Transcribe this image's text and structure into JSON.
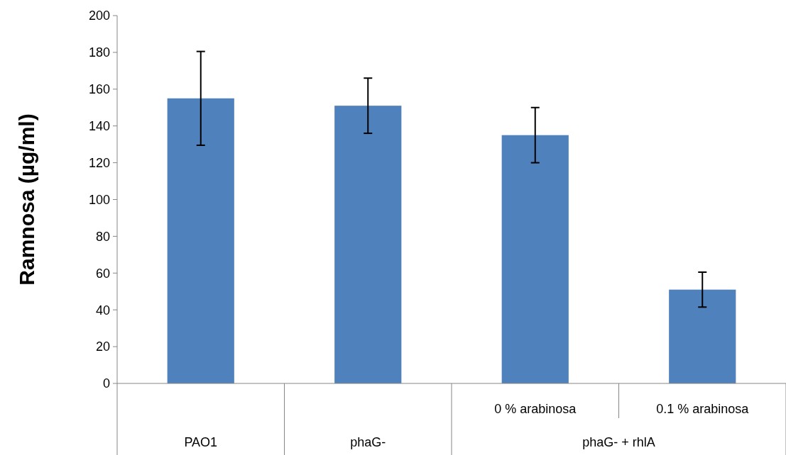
{
  "chart_data": {
    "type": "bar",
    "ylabel": "Ramnosa (µg/ml)",
    "categories": [
      "PAO1",
      "phaG-",
      "0 % arabinosa",
      "0.1 % arabinosa"
    ],
    "values": [
      155,
      151,
      135,
      51
    ],
    "errors": [
      25.5,
      15,
      15,
      9.5
    ],
    "color": "#4f81bd",
    "ylim": [
      0,
      200
    ],
    "yticks": [
      0,
      20,
      40,
      60,
      80,
      100,
      120,
      140,
      160,
      180,
      200
    ],
    "annotations": [
      "phaG- + rhlA"
    ]
  }
}
